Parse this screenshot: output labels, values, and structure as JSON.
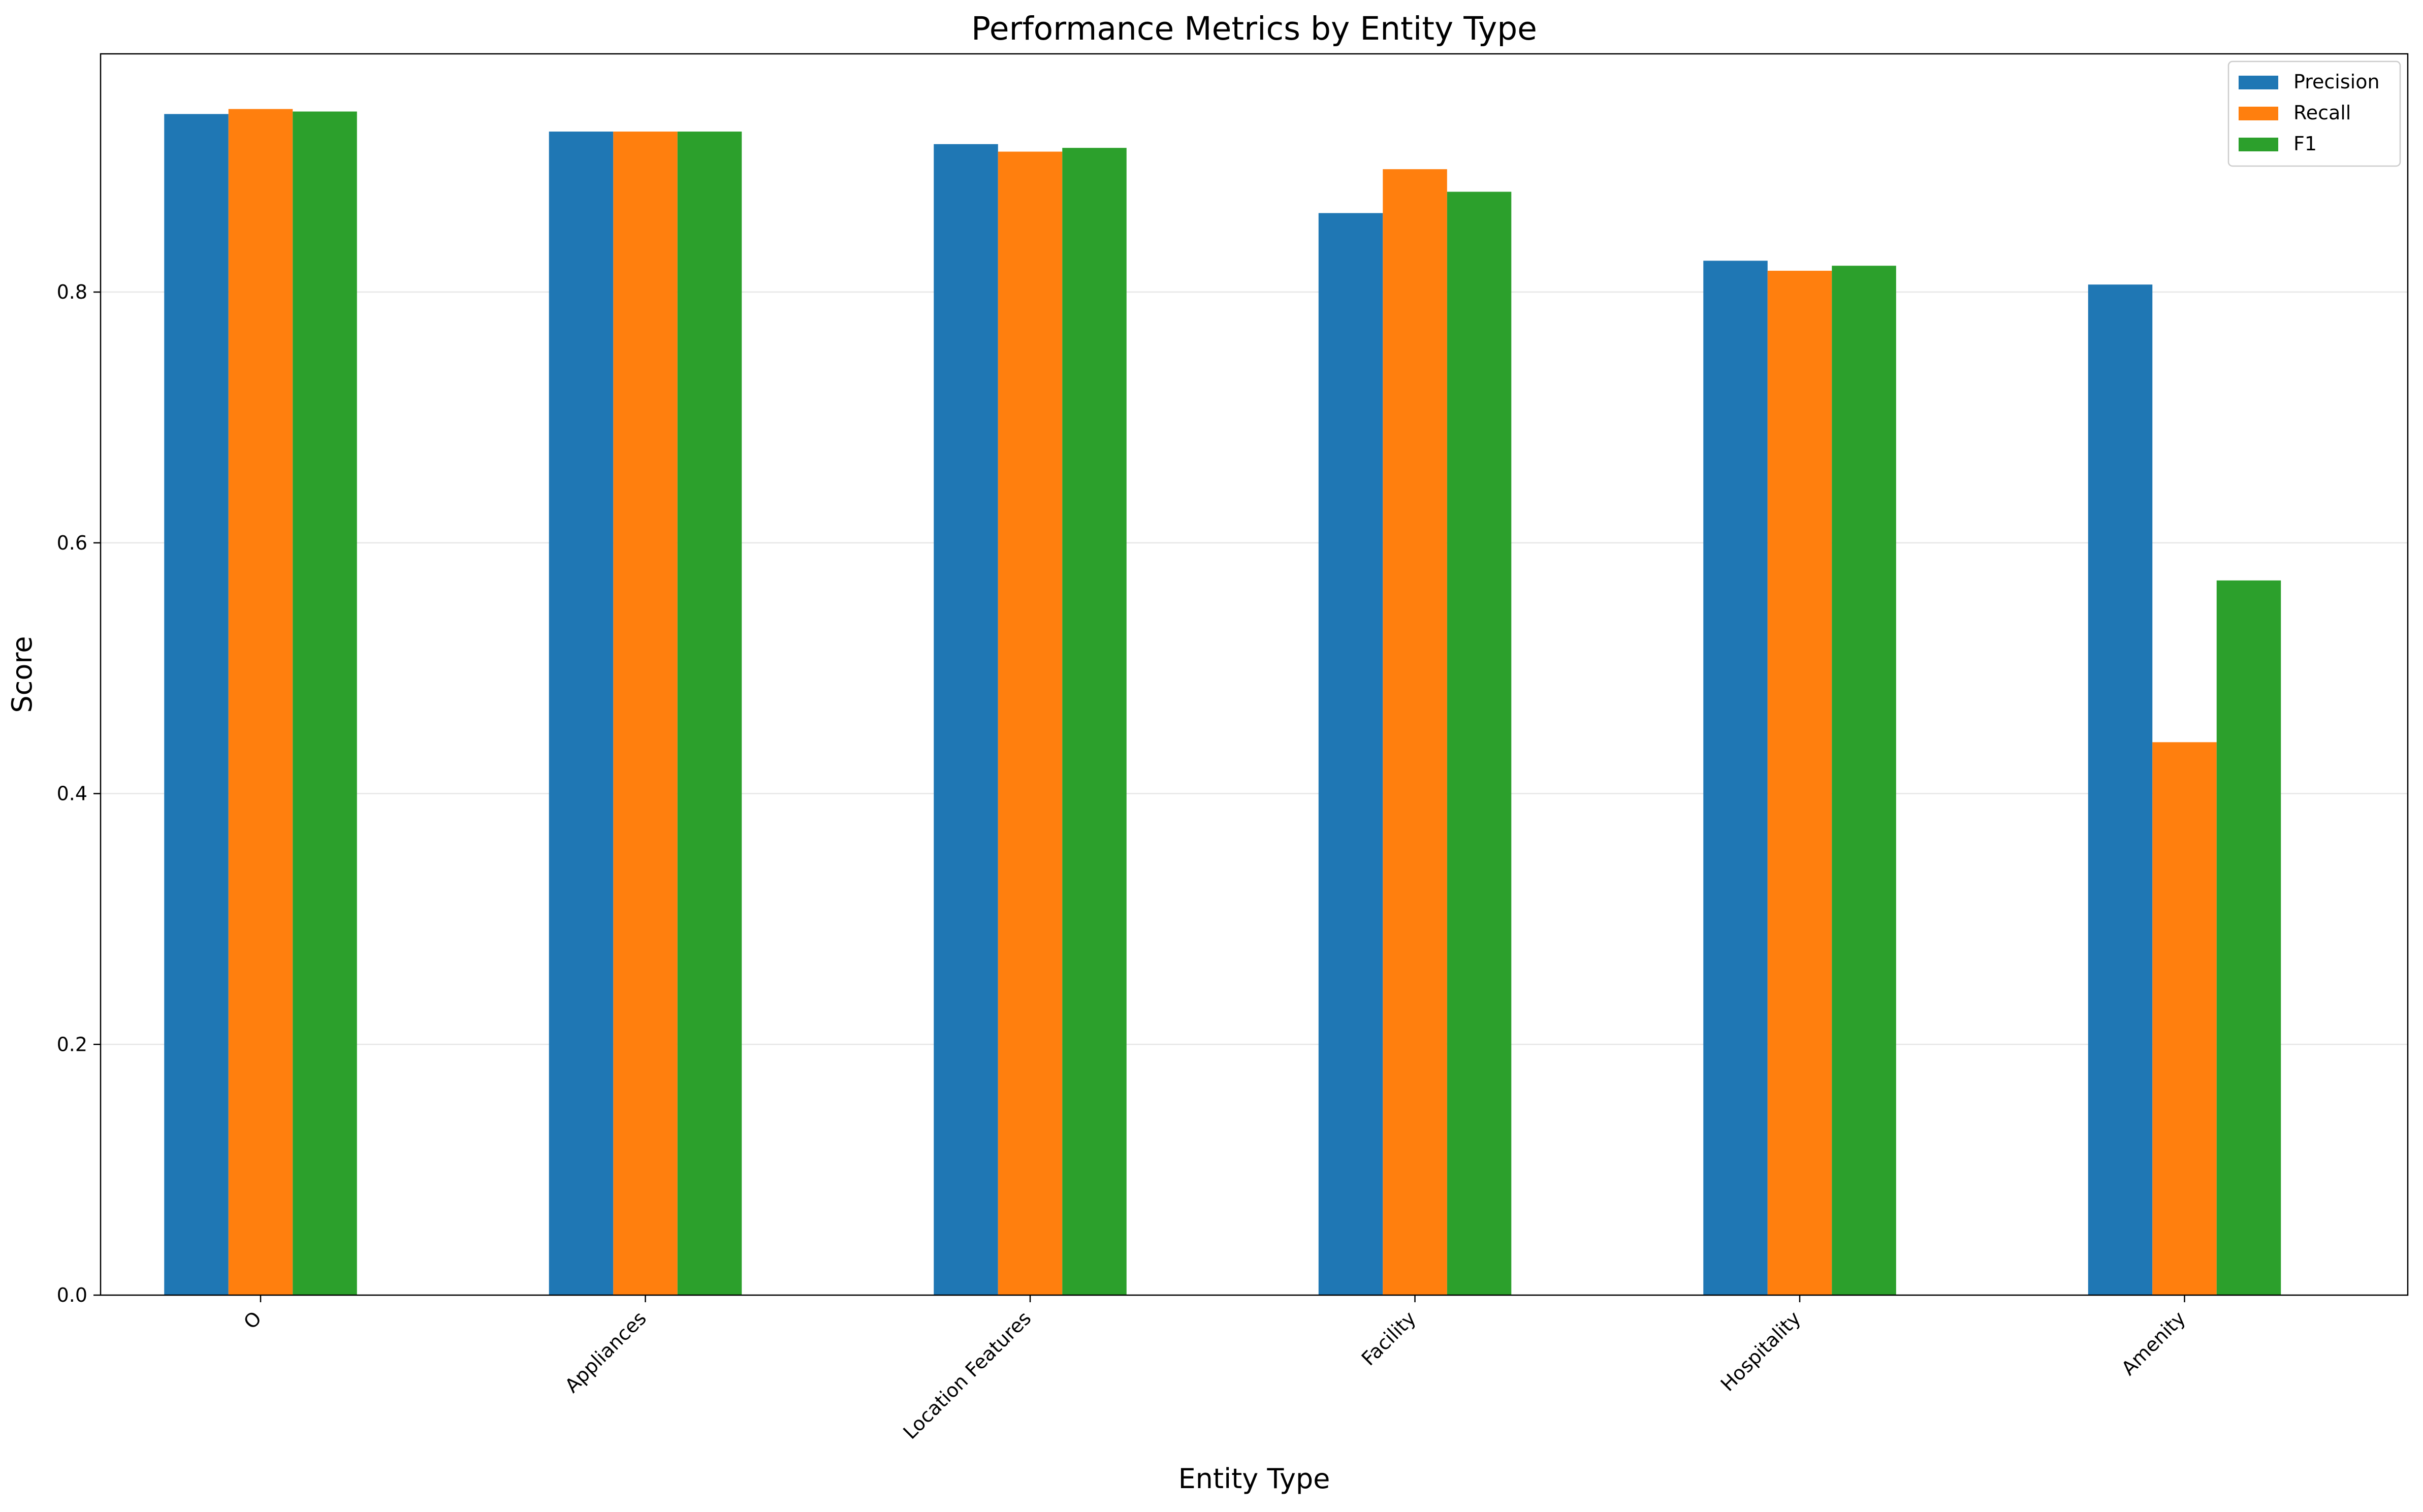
{
  "chart_data": {
    "type": "bar",
    "title": "Performance Metrics by Entity Type",
    "xlabel": "Entity Type",
    "ylabel": "Score",
    "categories": [
      "O",
      "Appliances",
      "Location Features",
      "Facility",
      "Hospitality",
      "Amenity"
    ],
    "series": [
      {
        "name": "Precision",
        "color": "#1f77b4",
        "values": [
          0.942,
          0.928,
          0.918,
          0.863,
          0.825,
          0.806
        ]
      },
      {
        "name": "Recall",
        "color": "#ff7f0e",
        "values": [
          0.946,
          0.928,
          0.912,
          0.898,
          0.817,
          0.441
        ]
      },
      {
        "name": "F1",
        "color": "#2ca02c",
        "values": [
          0.944,
          0.928,
          0.915,
          0.88,
          0.821,
          0.57
        ]
      }
    ],
    "ylim": [
      0,
      0.99
    ],
    "yticks": [
      0.0,
      0.2,
      0.4,
      0.6,
      0.8
    ],
    "ytick_labels": [
      "0.0",
      "0.2",
      "0.4",
      "0.6",
      "0.8"
    ],
    "grid": "y",
    "legend": "top-right"
  }
}
